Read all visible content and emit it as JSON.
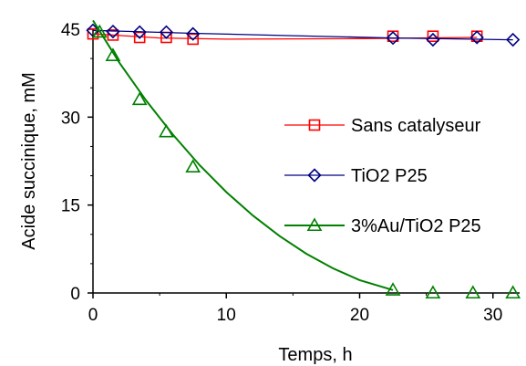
{
  "chart_data": {
    "type": "scatter",
    "xlabel": "Temps, h",
    "ylabel": "Acide succinique, mM",
    "xlim": [
      0,
      32
    ],
    "ylim": [
      0,
      45
    ],
    "xticks": [
      0,
      10,
      20,
      30
    ],
    "yticks": [
      0,
      15,
      30,
      45
    ],
    "xtick_labels": [
      "0",
      "10",
      "20",
      "30"
    ],
    "ytick_labels": [
      "0",
      "15",
      "30",
      "45"
    ],
    "grid": false,
    "legend_position": "right",
    "series": [
      {
        "name": "Sans catalyseur",
        "color": "#ff0000",
        "marker": "square",
        "points": [
          [
            0,
            44.2
          ],
          [
            1.5,
            44.0
          ],
          [
            3.5,
            43.6
          ],
          [
            5.5,
            43.6
          ],
          [
            7.5,
            43.3
          ],
          [
            22.5,
            43.8
          ],
          [
            25.5,
            43.8
          ],
          [
            28.8,
            43.8
          ]
        ],
        "trend": [
          [
            0,
            44.2
          ],
          [
            5,
            43.5
          ],
          [
            10,
            43.3
          ],
          [
            20,
            43.4
          ],
          [
            28.8,
            43.6
          ]
        ]
      },
      {
        "name": "TiO2 P25",
        "color": "#000080",
        "marker": "diamond",
        "points": [
          [
            0,
            44.8
          ],
          [
            1.5,
            44.6
          ],
          [
            3.5,
            44.5
          ],
          [
            5.5,
            44.5
          ],
          [
            7.5,
            44.2
          ],
          [
            22.5,
            43.5
          ],
          [
            25.5,
            43.2
          ],
          [
            28.8,
            43.6
          ],
          [
            31.5,
            43.2
          ]
        ],
        "trend": [
          [
            0,
            44.8
          ],
          [
            7.5,
            44.3
          ],
          [
            15,
            43.9
          ],
          [
            22.5,
            43.5
          ],
          [
            31.5,
            43.2
          ]
        ]
      },
      {
        "name": "3%Au/TiO2 P25",
        "color": "#008000",
        "marker": "triangle",
        "points": [
          [
            0.5,
            44.5
          ],
          [
            1.5,
            40.5
          ],
          [
            3.5,
            33.0
          ],
          [
            5.5,
            27.5
          ],
          [
            7.5,
            21.5
          ],
          [
            22.5,
            0.5
          ],
          [
            25.5,
            0
          ],
          [
            28.5,
            0
          ],
          [
            31.5,
            0
          ]
        ],
        "trend": [
          [
            0,
            46.5
          ],
          [
            2,
            39.2
          ],
          [
            4,
            32.8
          ],
          [
            6,
            27.0
          ],
          [
            8,
            21.8
          ],
          [
            10,
            17.2
          ],
          [
            12,
            13.2
          ],
          [
            14,
            9.7
          ],
          [
            16,
            6.7
          ],
          [
            18,
            4.2
          ],
          [
            20,
            2.2
          ],
          [
            22.5,
            0.5
          ]
        ]
      }
    ]
  }
}
